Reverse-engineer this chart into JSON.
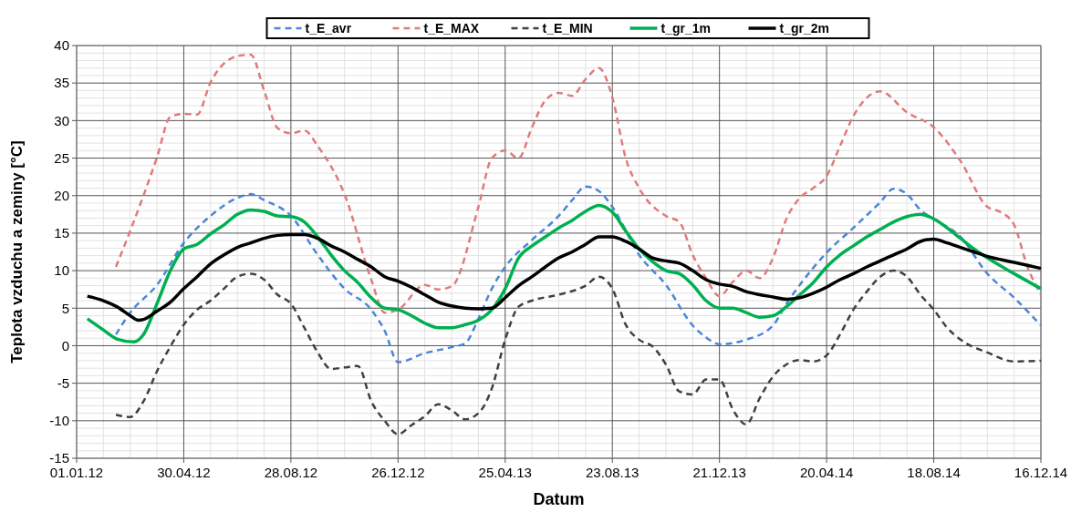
{
  "chart_data": {
    "type": "line",
    "xlabel": "Datum",
    "ylabel": "Teplota vzduchu a zeminy [°C]",
    "xlim": [
      "2012-01-01",
      "2014-12-16"
    ],
    "xticks": [
      {
        "value": "2012-01-01",
        "label": "01.01.12"
      },
      {
        "value": "2012-04-30",
        "label": "30.04.12"
      },
      {
        "value": "2012-08-28",
        "label": "28.08.12"
      },
      {
        "value": "2012-12-26",
        "label": "26.12.12"
      },
      {
        "value": "2013-04-25",
        "label": "25.04.13"
      },
      {
        "value": "2013-08-23",
        "label": "23.08.13"
      },
      {
        "value": "2013-12-21",
        "label": "21.12.13"
      },
      {
        "value": "2014-04-20",
        "label": "20.04.14"
      },
      {
        "value": "2014-08-18",
        "label": "18.08.14"
      },
      {
        "value": "2014-12-16",
        "label": "16.12.14"
      }
    ],
    "ylim": [
      -15,
      40
    ],
    "yticks": [
      -15,
      -10,
      -5,
      0,
      5,
      10,
      15,
      20,
      25,
      30,
      35,
      40
    ],
    "grid": true,
    "legend": "top",
    "series": [
      {
        "name": "t_E_avr",
        "color": "#4a86d8",
        "line_style": "dashed",
        "x": [
          "2012-02-14",
          "2012-03-01",
          "2012-03-31",
          "2012-04-30",
          "2012-05-30",
          "2012-06-29",
          "2012-07-14",
          "2012-07-29",
          "2012-08-28",
          "2012-09-27",
          "2012-10-27",
          "2012-11-26",
          "2012-12-11",
          "2012-12-26",
          "2013-01-25",
          "2013-02-24",
          "2013-03-11",
          "2013-03-26",
          "2013-04-10",
          "2013-04-25",
          "2013-05-25",
          "2013-06-24",
          "2013-07-09",
          "2013-07-24",
          "2013-08-08",
          "2013-08-23",
          "2013-09-22",
          "2013-10-22",
          "2013-11-21",
          "2013-12-06",
          "2013-12-21",
          "2014-01-20",
          "2014-02-19",
          "2014-03-06",
          "2014-03-21",
          "2014-04-20",
          "2014-05-20",
          "2014-06-19",
          "2014-07-04",
          "2014-07-19",
          "2014-08-03",
          "2014-08-18",
          "2014-09-17",
          "2014-10-17",
          "2014-11-16",
          "2014-12-16"
        ],
        "values": [
          1.5,
          4.4,
          8.1,
          13.7,
          17.3,
          19.7,
          20.2,
          19.4,
          17.3,
          12.1,
          7.6,
          4.8,
          2.0,
          -2.2,
          -1.0,
          -0.2,
          0.3,
          3.6,
          7.6,
          10.5,
          14.1,
          17.3,
          19.4,
          21.2,
          20.6,
          18.5,
          12.1,
          8.1,
          2.7,
          1.1,
          0.2,
          0.8,
          2.7,
          5.6,
          8.1,
          12.4,
          15.7,
          19.1,
          20.9,
          20.2,
          18.1,
          16.9,
          14.5,
          9.6,
          6.4,
          2.7
        ]
      },
      {
        "name": "t_E_MAX",
        "color": "#e07b7b",
        "line_style": "dashed",
        "x": [
          "2012-02-14",
          "2012-03-01",
          "2012-03-31",
          "2012-04-15",
          "2012-04-30",
          "2012-05-15",
          "2012-05-30",
          "2012-06-29",
          "2012-07-14",
          "2012-07-29",
          "2012-08-13",
          "2012-08-28",
          "2012-09-12",
          "2012-09-27",
          "2012-10-27",
          "2012-11-26",
          "2012-12-11",
          "2012-12-26",
          "2013-01-25",
          "2013-02-09",
          "2013-02-24",
          "2013-03-26",
          "2013-04-10",
          "2013-04-25",
          "2013-05-10",
          "2013-05-25",
          "2013-06-09",
          "2013-06-24",
          "2013-07-09",
          "2013-07-24",
          "2013-08-08",
          "2013-08-23",
          "2013-09-07",
          "2013-09-22",
          "2013-10-22",
          "2013-11-06",
          "2013-11-21",
          "2013-12-06",
          "2013-12-21",
          "2014-01-05",
          "2014-01-20",
          "2014-02-04",
          "2014-02-19",
          "2014-03-06",
          "2014-03-21",
          "2014-04-05",
          "2014-04-20",
          "2014-05-05",
          "2014-05-20",
          "2014-06-19",
          "2014-07-19",
          "2014-08-18",
          "2014-09-17",
          "2014-10-17",
          "2014-11-01",
          "2014-11-16",
          "2014-12-01",
          "2014-12-16"
        ],
        "values": [
          10.5,
          15.3,
          25.1,
          30.5,
          30.9,
          30.8,
          35.1,
          38.6,
          38.8,
          34,
          29,
          28.3,
          28.7,
          26.6,
          20.2,
          8.8,
          4.4,
          4.8,
          8.1,
          7.5,
          7.9,
          18.5,
          25,
          26,
          25,
          29.1,
          32.7,
          33.7,
          33.3,
          35.5,
          37,
          33.1,
          25,
          21,
          17.3,
          16.5,
          12.1,
          9,
          6.6,
          8.5,
          10,
          9,
          11.7,
          16.9,
          19.7,
          21,
          22.6,
          26.6,
          30.6,
          33.9,
          31.1,
          29.1,
          24.6,
          18.5,
          17.8,
          16.1,
          10.5,
          6.8
        ]
      },
      {
        "name": "t_E_MIN",
        "color": "#404040",
        "line_style": "dashed",
        "x": [
          "2012-02-14",
          "2012-03-01",
          "2012-03-16",
          "2012-03-31",
          "2012-04-15",
          "2012-04-30",
          "2012-05-15",
          "2012-05-30",
          "2012-06-14",
          "2012-06-29",
          "2012-07-14",
          "2012-07-29",
          "2012-08-13",
          "2012-08-28",
          "2012-09-12",
          "2012-09-27",
          "2012-10-12",
          "2012-10-27",
          "2012-11-11",
          "2012-11-26",
          "2012-12-11",
          "2012-12-26",
          "2013-01-10",
          "2013-01-25",
          "2013-02-09",
          "2013-02-24",
          "2013-03-11",
          "2013-03-26",
          "2013-04-10",
          "2013-04-25",
          "2013-05-10",
          "2013-05-25",
          "2013-06-24",
          "2013-07-24",
          "2013-08-08",
          "2013-08-23",
          "2013-09-07",
          "2013-09-22",
          "2013-10-07",
          "2013-10-22",
          "2013-11-06",
          "2013-11-21",
          "2013-12-06",
          "2013-12-21",
          "2014-01-05",
          "2014-01-20",
          "2014-02-04",
          "2014-02-19",
          "2014-03-06",
          "2014-03-21",
          "2014-04-05",
          "2014-04-20",
          "2014-05-05",
          "2014-05-20",
          "2014-06-04",
          "2014-06-19",
          "2014-07-04",
          "2014-07-19",
          "2014-08-03",
          "2014-08-18",
          "2014-09-02",
          "2014-09-17",
          "2014-10-17",
          "2014-11-16",
          "2014-12-16"
        ],
        "values": [
          -9.2,
          -9.5,
          -7.4,
          -3.4,
          -0.1,
          2.8,
          4.8,
          6,
          7.6,
          9.2,
          9.6,
          8.8,
          6.8,
          5.6,
          2.4,
          -0.9,
          -3.1,
          -2.9,
          -2.7,
          -7.4,
          -10,
          -11.8,
          -10.6,
          -9.4,
          -7.8,
          -8.6,
          -9.8,
          -9,
          -5.7,
          0.8,
          5.2,
          6,
          6.8,
          8,
          9.2,
          7.6,
          2.8,
          0.8,
          -0.1,
          -2.5,
          -6.1,
          -6.5,
          -4.5,
          -4.5,
          -8.5,
          -10.5,
          -7,
          -4.1,
          -2.5,
          -1.9,
          -2.1,
          -1.3,
          1.5,
          4.8,
          7.2,
          9.2,
          10,
          9.2,
          6.8,
          4.8,
          2.4,
          0.8,
          -0.9,
          -2.1,
          -2.0
        ]
      },
      {
        "name": "t_gr_1m",
        "color": "#00b050",
        "line_style": "solid",
        "x": [
          "2012-01-13",
          "2012-01-31",
          "2012-02-15",
          "2012-03-05",
          "2012-03-16",
          "2012-03-31",
          "2012-04-15",
          "2012-04-30",
          "2012-05-15",
          "2012-05-30",
          "2012-06-14",
          "2012-06-29",
          "2012-07-14",
          "2012-07-29",
          "2012-08-13",
          "2012-08-28",
          "2012-09-12",
          "2012-09-27",
          "2012-10-12",
          "2012-10-27",
          "2012-11-11",
          "2012-11-26",
          "2012-12-11",
          "2012-12-26",
          "2013-01-10",
          "2013-01-25",
          "2013-02-09",
          "2013-02-24",
          "2013-03-11",
          "2013-03-26",
          "2013-04-10",
          "2013-04-25",
          "2013-05-10",
          "2013-05-25",
          "2013-06-09",
          "2013-06-24",
          "2013-07-09",
          "2013-07-24",
          "2013-08-08",
          "2013-08-23",
          "2013-09-07",
          "2013-09-22",
          "2013-10-07",
          "2013-10-22",
          "2013-11-06",
          "2013-11-21",
          "2013-12-06",
          "2013-12-21",
          "2014-01-05",
          "2014-01-20",
          "2014-02-04",
          "2014-02-19",
          "2014-03-06",
          "2014-03-21",
          "2014-04-05",
          "2014-04-20",
          "2014-05-05",
          "2014-05-20",
          "2014-06-04",
          "2014-06-19",
          "2014-07-04",
          "2014-07-19",
          "2014-08-03",
          "2014-08-18",
          "2014-09-02",
          "2014-09-17",
          "2014-10-02",
          "2014-10-17",
          "2014-11-16",
          "2014-12-16"
        ],
        "values": [
          3.6,
          2.1,
          0.9,
          0.5,
          1.5,
          5.6,
          10,
          12.9,
          13.5,
          14.9,
          16.1,
          17.5,
          18.1,
          17.9,
          17.3,
          17.2,
          16.5,
          14.5,
          12.1,
          10,
          8.4,
          6.4,
          5.0,
          4.8,
          4.0,
          3.0,
          2.4,
          2.4,
          2.8,
          3.4,
          4.8,
          7.6,
          11.7,
          13.3,
          14.5,
          15.7,
          16.7,
          17.9,
          18.7,
          17.8,
          15.3,
          12.9,
          11.2,
          10,
          9.6,
          8.1,
          6,
          5,
          5.0,
          4.4,
          3.8,
          4.0,
          5.2,
          6.8,
          8.4,
          10.5,
          12.1,
          13.3,
          14.5,
          15.5,
          16.5,
          17.2,
          17.5,
          16.9,
          15.7,
          14.3,
          12.9,
          11.7,
          9.6,
          7.6
        ]
      },
      {
        "name": "t_gr_2m",
        "color": "#000000",
        "line_style": "solid",
        "x": [
          "2012-01-13",
          "2012-01-31",
          "2012-02-15",
          "2012-03-01",
          "2012-03-10",
          "2012-03-16",
          "2012-03-31",
          "2012-04-15",
          "2012-04-30",
          "2012-05-15",
          "2012-05-30",
          "2012-06-14",
          "2012-06-29",
          "2012-07-14",
          "2012-07-29",
          "2012-08-13",
          "2012-08-28",
          "2012-09-12",
          "2012-09-27",
          "2012-10-12",
          "2012-10-27",
          "2012-11-11",
          "2012-11-26",
          "2012-12-11",
          "2012-12-26",
          "2013-01-10",
          "2013-01-25",
          "2013-02-09",
          "2013-02-24",
          "2013-03-11",
          "2013-03-26",
          "2013-04-10",
          "2013-04-25",
          "2013-05-10",
          "2013-05-25",
          "2013-06-09",
          "2013-06-24",
          "2013-07-09",
          "2013-07-24",
          "2013-08-08",
          "2013-08-23",
          "2013-09-07",
          "2013-09-22",
          "2013-10-07",
          "2013-10-22",
          "2013-11-06",
          "2013-11-21",
          "2013-12-06",
          "2013-12-21",
          "2014-01-05",
          "2014-01-20",
          "2014-02-04",
          "2014-02-19",
          "2014-03-06",
          "2014-03-21",
          "2014-04-05",
          "2014-04-20",
          "2014-05-05",
          "2014-05-20",
          "2014-06-04",
          "2014-06-19",
          "2014-07-04",
          "2014-07-19",
          "2014-08-03",
          "2014-08-18",
          "2014-09-02",
          "2014-09-17",
          "2014-10-02",
          "2014-10-17",
          "2014-11-16",
          "2014-12-16"
        ],
        "values": [
          6.6,
          6.0,
          5.2,
          4.0,
          3.4,
          3.5,
          4.6,
          5.8,
          7.6,
          9.2,
          10.9,
          12.1,
          13.1,
          13.7,
          14.3,
          14.7,
          14.8,
          14.8,
          14.3,
          13.3,
          12.5,
          11.5,
          10.5,
          9.2,
          8.6,
          7.8,
          6.8,
          5.8,
          5.3,
          5.0,
          4.9,
          5.0,
          6.4,
          8,
          9.2,
          10.5,
          11.7,
          12.5,
          13.5,
          14.5,
          14.5,
          13.9,
          12.9,
          11.7,
          11.3,
          11,
          10,
          8.8,
          8.2,
          7.9,
          7.2,
          6.8,
          6.5,
          6.2,
          6.4,
          7.0,
          7.8,
          8.8,
          9.6,
          10.5,
          11.3,
          12.1,
          12.9,
          13.9,
          14.2,
          13.7,
          13.1,
          12.5,
          11.9,
          11.1,
          10.3
        ]
      }
    ]
  }
}
